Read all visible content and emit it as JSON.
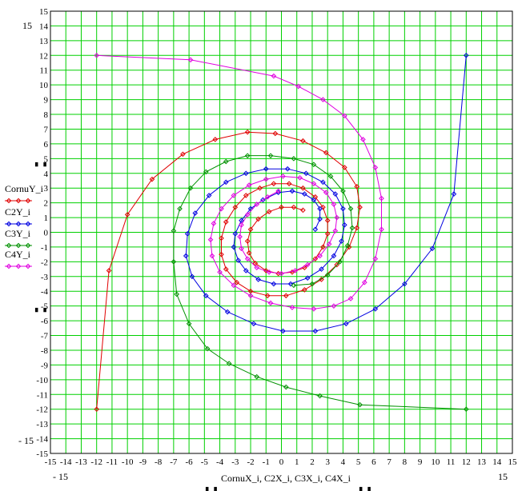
{
  "chart_data": {
    "type": "line",
    "xlabel": "CornuX_i, C2X_i, C3X_i, C4X_i",
    "ylabel": "",
    "xlim": [
      -15,
      15
    ],
    "ylim": [
      -15,
      15
    ],
    "grid": true,
    "legend_position": "left",
    "xticks": [
      "-15",
      "-14",
      "-13",
      "-12",
      "-11",
      "-10",
      "-9",
      "-8",
      "-7",
      "-6",
      "-5",
      "-4",
      "-3",
      "-2",
      "-1",
      "0",
      "1",
      "2",
      "3",
      "4",
      "5",
      "6",
      "7",
      "8",
      "9",
      "10",
      "11",
      "12",
      "13",
      "14",
      "15"
    ],
    "yticks": [
      "15",
      "14",
      "13",
      "12",
      "11",
      "10",
      "9",
      "8",
      "7",
      "6",
      "5",
      "4",
      "3",
      "2",
      "1",
      "0",
      "-1",
      "-2",
      "-3",
      "-4",
      "-5",
      "-6",
      "-7",
      "-8",
      "-9",
      "-10",
      "-11",
      "-12",
      "-13",
      "-14",
      "-15"
    ],
    "corner_labels": {
      "y_max": "15",
      "y_min": "- 15",
      "x_min": "- 15",
      "x_max": "15"
    },
    "series": [
      {
        "name": "CornuY_i",
        "color": "#e00000",
        "x": [
          -12,
          -11.2,
          -10,
          -8.4,
          -6.4,
          -4.3,
          -2.2,
          -0.4,
          1.4,
          2.9,
          4.1,
          4.9,
          5.1,
          4.9,
          4.4,
          3.6,
          2.6,
          1.5,
          0.3,
          -0.9,
          -2,
          -2.9,
          -3.6,
          -3.9,
          -3.9,
          -3.6,
          -3,
          -2.3,
          -1.4,
          -0.5,
          0.5,
          1.4,
          2.2,
          2.7,
          3.0,
          3.0,
          2.7,
          2.2,
          1.5,
          0.7,
          -0.2,
          -1,
          -1.7,
          -2.1,
          -2.2,
          -2.0,
          -1.5,
          -0.8,
          0,
          0.8,
          1.4
        ],
        "y": [
          -12,
          -2.6,
          1.2,
          3.6,
          5.3,
          6.3,
          6.8,
          6.7,
          6.2,
          5.4,
          4.4,
          3.1,
          1.7,
          0.3,
          -1,
          -2.2,
          -3.2,
          -3.9,
          -4.3,
          -4.3,
          -4,
          -3.4,
          -2.5,
          -1.5,
          -0.4,
          0.7,
          1.7,
          2.5,
          3.0,
          3.3,
          3.3,
          3.0,
          2.4,
          1.7,
          0.8,
          -0.1,
          -1.0,
          -1.8,
          -2.4,
          -2.7,
          -2.8,
          -2.6,
          -2.1,
          -1.4,
          -0.6,
          0.2,
          0.9,
          1.4,
          1.7,
          1.7,
          1.5
        ]
      },
      {
        "name": "C2Y_i",
        "color": "#0000e0",
        "x": [
          12,
          11.2,
          9.8,
          8.0,
          6.1,
          4.2,
          2.2,
          0.1,
          -1.8,
          -3.5,
          -4.9,
          -5.8,
          -6.2,
          -6.1,
          -5.6,
          -4.7,
          -3.6,
          -2.3,
          -1.0,
          0.4,
          1.6,
          2.7,
          3.5,
          4.0,
          4.1,
          3.9,
          3.4,
          2.6,
          1.7,
          0.6,
          -0.5,
          -1.5,
          -2.3,
          -2.8,
          -3.1,
          -3.0,
          -2.6,
          -2.0,
          -1.2,
          -0.2,
          0.7,
          1.5,
          2.1,
          2.5,
          2.5,
          2.2
        ],
        "y": [
          12,
          2.6,
          -1.1,
          -3.5,
          -5.2,
          -6.2,
          -6.7,
          -6.7,
          -6.2,
          -5.4,
          -4.3,
          -3.0,
          -1.6,
          -0.1,
          1.3,
          2.5,
          3.4,
          4.0,
          4.3,
          4.3,
          4.0,
          3.4,
          2.6,
          1.6,
          0.5,
          -0.6,
          -1.6,
          -2.5,
          -3.1,
          -3.5,
          -3.5,
          -3.2,
          -2.6,
          -1.9,
          -1.0,
          -0.1,
          0.8,
          1.6,
          2.2,
          2.7,
          2.8,
          2.6,
          2.2,
          1.6,
          0.9,
          0.2
        ]
      },
      {
        "name": "C3Y_i",
        "color": "#009000",
        "x": [
          12,
          5.1,
          2.5,
          0.3,
          -1.6,
          -3.4,
          -4.8,
          -6.0,
          -6.8,
          -7.0,
          -7.0,
          -6.6,
          -5.9,
          -4.9,
          -3.6,
          -2.2,
          -0.7,
          0.8,
          2.1,
          3.2,
          4.0,
          4.5,
          4.6,
          4.3,
          3.8,
          3.0,
          2.0,
          0.8
        ],
        "y": [
          -12,
          -11.7,
          -11.1,
          -10.5,
          -9.8,
          -8.9,
          -7.9,
          -6.2,
          -4.2,
          -2.0,
          0.1,
          1.6,
          3.0,
          4.1,
          4.8,
          5.2,
          5.2,
          5.0,
          4.6,
          3.8,
          2.8,
          1.6,
          0.3,
          -0.9,
          -2.0,
          -2.9,
          -3.5,
          -3.6
        ]
      },
      {
        "name": "C4Y_i",
        "color": "#e000e0",
        "x": [
          -12,
          -5.9,
          -0.5,
          1.1,
          2.7,
          4.1,
          5.3,
          6.1,
          6.5,
          6.5,
          6.1,
          5.4,
          4.5,
          3.4,
          2.1,
          0.7,
          -0.7,
          -2.0,
          -3.1,
          -4.0,
          -4.5,
          -4.6,
          -4.4,
          -3.9,
          -3.1,
          -2.1,
          -1.0,
          0.1,
          1.2,
          2.1,
          2.9,
          3.4,
          3.6,
          3.5,
          3.1,
          2.5,
          1.7,
          0.9,
          0.0,
          -0.8,
          -1.6,
          -2.2,
          -2.6,
          -2.7,
          -2.6,
          -2.2,
          -1.6,
          -0.9,
          -0.2
        ],
        "y": [
          12,
          11.7,
          10.6,
          9.9,
          9.0,
          7.9,
          6.3,
          4.4,
          2.3,
          0.2,
          -1.8,
          -3.4,
          -4.5,
          -5.0,
          -5.2,
          -5.1,
          -4.8,
          -4.3,
          -3.6,
          -2.7,
          -1.6,
          -0.5,
          0.6,
          1.6,
          2.5,
          3.2,
          3.6,
          3.8,
          3.7,
          3.3,
          2.7,
          1.9,
          1.0,
          0.1,
          -0.8,
          -1.6,
          -2.2,
          -2.6,
          -2.8,
          -2.7,
          -2.4,
          -1.8,
          -1.1,
          -0.3,
          0.5,
          1.2,
          1.9,
          2.4,
          2.8
        ]
      }
    ]
  }
}
